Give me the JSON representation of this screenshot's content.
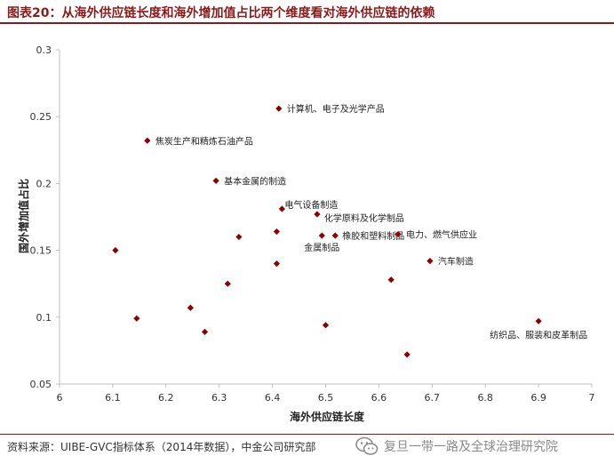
{
  "title": "图表20：从海外供应链长度和海外增加值占比两个维度看对海外供应链的依赖",
  "source": "资料来源：UIBE-GVC指标体系（2014年数据），中金公司研究部",
  "watermark": "复旦一带一路及全球治理研究院",
  "colors": {
    "accent": "#8b1a1a",
    "marker": "#8b0000",
    "axis": "#bfbfbf",
    "text": "#333333"
  },
  "chart_data": {
    "type": "scatter",
    "xlabel": "海外供应链长度",
    "ylabel": "国外增加值占比",
    "xlim": [
      6,
      7
    ],
    "ylim": [
      0.05,
      0.3
    ],
    "x_ticks": [
      "6",
      "6.1",
      "6.2",
      "6.3",
      "6.4",
      "6.5",
      "6.6",
      "6.7",
      "6.8",
      "6.9",
      "7"
    ],
    "y_ticks": [
      "0.05",
      "0.1",
      "0.15",
      "0.2",
      "0.25",
      "0.3"
    ],
    "grid": false,
    "points": [
      {
        "x": 6.412,
        "y": 0.256,
        "label": "计算机、电子及光学产品"
      },
      {
        "x": 6.165,
        "y": 0.232,
        "label": "焦炭生产和精炼石油产品"
      },
      {
        "x": 6.294,
        "y": 0.202,
        "label": "基本金属的制造"
      },
      {
        "x": 6.418,
        "y": 0.181,
        "label": "电气设备制造"
      },
      {
        "x": 6.484,
        "y": 0.177,
        "label": "化学原料及化学制品"
      },
      {
        "x": 6.493,
        "y": 0.161,
        "label": "金属制品"
      },
      {
        "x": 6.518,
        "y": 0.161,
        "label": "橡胶和塑料制品"
      },
      {
        "x": 6.636,
        "y": 0.162,
        "label": "电力、燃气供应业"
      },
      {
        "x": 6.696,
        "y": 0.142,
        "label": "汽车制造"
      },
      {
        "x": 6.9,
        "y": 0.097,
        "label": "纺织品、服装和皮革制品"
      },
      {
        "x": 6.105,
        "y": 0.15,
        "label": ""
      },
      {
        "x": 6.337,
        "y": 0.16,
        "label": ""
      },
      {
        "x": 6.408,
        "y": 0.164,
        "label": ""
      },
      {
        "x": 6.408,
        "y": 0.14,
        "label": ""
      },
      {
        "x": 6.316,
        "y": 0.125,
        "label": ""
      },
      {
        "x": 6.623,
        "y": 0.128,
        "label": ""
      },
      {
        "x": 6.145,
        "y": 0.099,
        "label": ""
      },
      {
        "x": 6.246,
        "y": 0.107,
        "label": ""
      },
      {
        "x": 6.273,
        "y": 0.089,
        "label": ""
      },
      {
        "x": 6.5,
        "y": 0.094,
        "label": ""
      },
      {
        "x": 6.653,
        "y": 0.072,
        "label": ""
      }
    ]
  }
}
